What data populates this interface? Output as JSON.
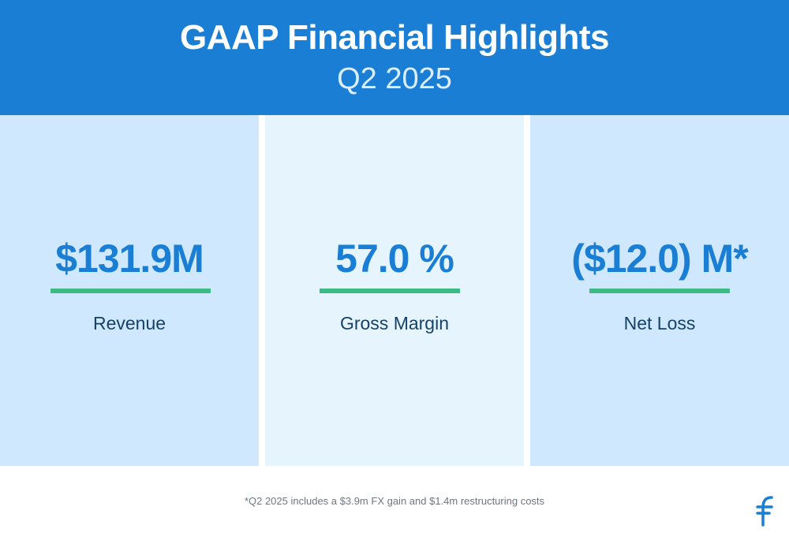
{
  "header": {
    "title": "GAAP Financial Highlights",
    "subtitle": "Q2 2025"
  },
  "metrics": [
    {
      "value": "$131.9M",
      "label": "Revenue"
    },
    {
      "value": "57.0 %",
      "label": "Gross Margin"
    },
    {
      "value": "($12.0) M*",
      "label": "Net Loss"
    }
  ],
  "footnote": "*Q2 2025 includes a $3.9m FX gain and $1.4m restructuring costs",
  "colors": {
    "header_bg": "#1a7fd4",
    "panel_bg_dark": "#cfe8fd",
    "panel_bg_light": "#e5f4fd",
    "value_text": "#1a7fd4",
    "accent_bar": "#3dbb84",
    "label_text": "#16416b"
  },
  "logo": {
    "icon": "company-logo-icon"
  }
}
